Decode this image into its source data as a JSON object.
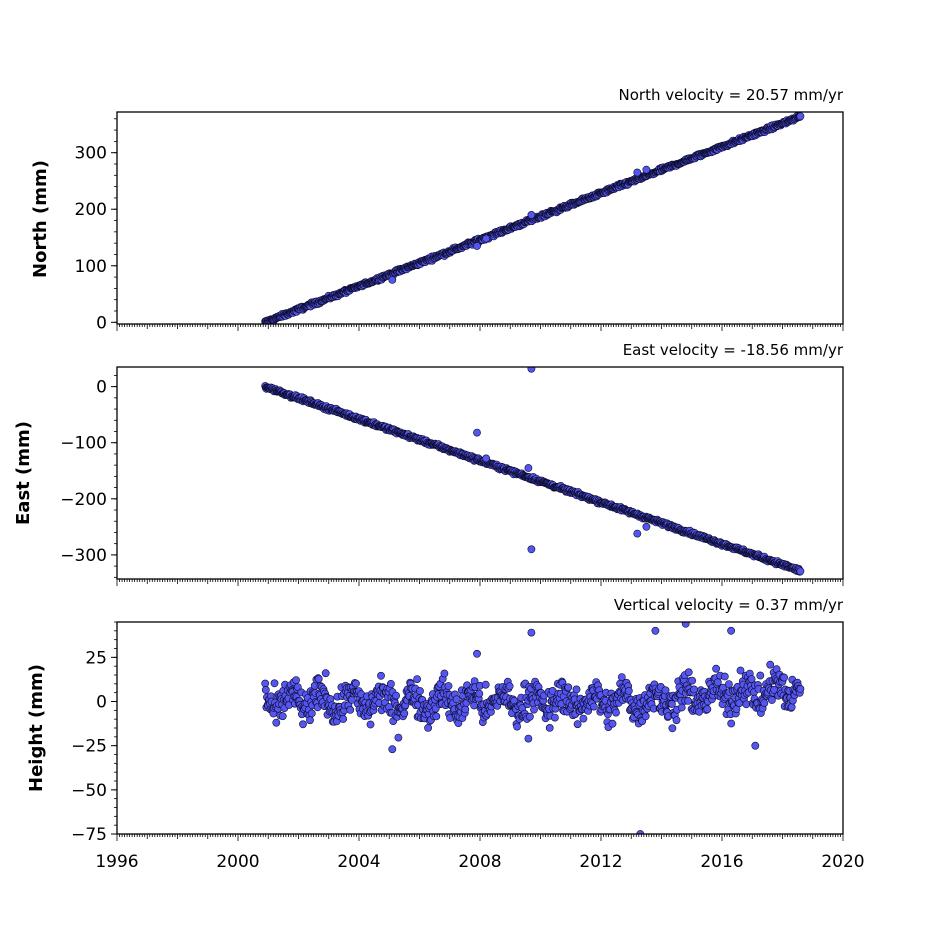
{
  "chart_data": [
    {
      "type": "scatter",
      "title": "North velocity = 20.57 mm/yr",
      "ylabel": "North (mm)",
      "xlim": [
        1996,
        2020
      ],
      "ylim": [
        -3,
        372
      ],
      "yticks": [
        0,
        100,
        200,
        300
      ],
      "series": [
        {
          "kind": "linear",
          "x_start": 2000.9,
          "x_end": 2018.6,
          "y_start": 0,
          "slope": 20.57,
          "noise": 2.2,
          "outliers": [
            [
              2005.1,
              75
            ],
            [
              2007.9,
              135
            ],
            [
              2009.7,
              190
            ],
            [
              2013.2,
              265
            ],
            [
              2013.5,
              270
            ],
            [
              2008.2,
              148
            ]
          ]
        }
      ]
    },
    {
      "type": "scatter",
      "title": "East velocity = -18.56 mm/yr",
      "ylabel": "East (mm)",
      "xlim": [
        1996,
        2020
      ],
      "ylim": [
        -343,
        35
      ],
      "yticks": [
        0,
        -100,
        -200,
        -300
      ],
      "series": [
        {
          "kind": "linear",
          "x_start": 2000.9,
          "x_end": 2018.6,
          "y_start": 0,
          "slope": -18.56,
          "noise": 2.2,
          "outliers": [
            [
              2009.7,
              32
            ],
            [
              2007.9,
              -82
            ],
            [
              2009.7,
              -290
            ],
            [
              2009.6,
              -145
            ],
            [
              2013.2,
              -262
            ],
            [
              2008.2,
              -128
            ],
            [
              2013.5,
              -250
            ]
          ]
        }
      ]
    },
    {
      "type": "scatter",
      "title": "Vertical velocity = 0.37 mm/yr",
      "ylabel": "Height (mm)",
      "xlim": [
        1996,
        2020
      ],
      "ylim": [
        -75,
        45
      ],
      "yticks": [
        25,
        0,
        -25,
        -50,
        -75
      ],
      "xticks": [
        1996,
        2000,
        2004,
        2008,
        2012,
        2016,
        2020
      ],
      "series": [
        {
          "kind": "noisy",
          "x_start": 2000.9,
          "x_end": 2018.6,
          "baseline": 0,
          "slope": 0.37,
          "noise": 7,
          "outliers": [
            [
              2005.1,
              -27
            ],
            [
              2009.6,
              -21
            ],
            [
              2009.7,
              39
            ],
            [
              2013.3,
              -75
            ],
            [
              2014.8,
              44
            ],
            [
              2017.1,
              -25
            ],
            [
              2007.9,
              27
            ],
            [
              2013.8,
              40
            ],
            [
              2016.3,
              40
            ]
          ]
        }
      ]
    }
  ],
  "colors": {
    "marker_fill": "#5555f0",
    "marker_edge": "#0b0b2a"
  }
}
